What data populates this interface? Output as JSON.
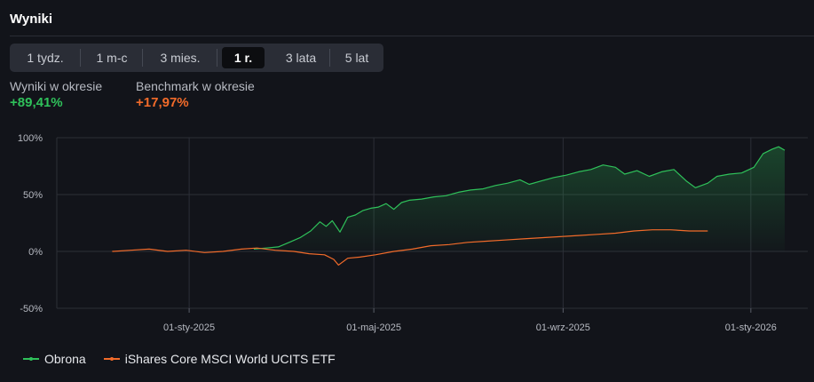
{
  "header": {
    "title": "Wyniki"
  },
  "tabs": [
    {
      "label": "1 tydz."
    },
    {
      "label": "1 m-c"
    },
    {
      "label": "3 mies."
    },
    {
      "label": "1 r.",
      "active": true
    },
    {
      "label": "3 lata"
    },
    {
      "label": "5 lat"
    }
  ],
  "stats": {
    "portfolio_label": "Wyniki w okresie",
    "portfolio_value": "+89,41%",
    "benchmark_label": "Benchmark w okresie",
    "benchmark_value": "+17,97%"
  },
  "colors": {
    "portfolio": "#2fc15a",
    "benchmark": "#f26b2a",
    "grid": "#2c2f37"
  },
  "chart_data": {
    "type": "line",
    "xlabel": "",
    "ylabel": "",
    "ylim": [
      -50,
      100
    ],
    "yticks": [
      "100%",
      "50%",
      "0%",
      "-50%"
    ],
    "ytick_values": [
      100,
      50,
      0,
      -50
    ],
    "xticks": [
      "01-sty-2025",
      "01-maj-2025",
      "01-wrz-2025",
      "01-sty-2026"
    ],
    "xtick_dates": [
      "2025-01-01",
      "2025-05-01",
      "2025-09-01",
      "2026-01-01"
    ],
    "grid": true,
    "legend_position": "bottom-left",
    "series": [
      {
        "name": "Obrona",
        "color": "#2fc15a",
        "points": [
          [
            "2025-02-12",
            2
          ],
          [
            "2025-02-20",
            3
          ],
          [
            "2025-02-28",
            4
          ],
          [
            "2025-03-07",
            8
          ],
          [
            "2025-03-14",
            12
          ],
          [
            "2025-03-21",
            18
          ],
          [
            "2025-03-27",
            26
          ],
          [
            "2025-03-31",
            22
          ],
          [
            "2025-04-04",
            27
          ],
          [
            "2025-04-09",
            17
          ],
          [
            "2025-04-14",
            30
          ],
          [
            "2025-04-19",
            32
          ],
          [
            "2025-04-24",
            36
          ],
          [
            "2025-04-29",
            38
          ],
          [
            "2025-05-04",
            39
          ],
          [
            "2025-05-09",
            42
          ],
          [
            "2025-05-14",
            37
          ],
          [
            "2025-05-19",
            43
          ],
          [
            "2025-05-24",
            45
          ],
          [
            "2025-06-01",
            46
          ],
          [
            "2025-06-09",
            48
          ],
          [
            "2025-06-17",
            49
          ],
          [
            "2025-06-25",
            52
          ],
          [
            "2025-07-03",
            54
          ],
          [
            "2025-07-11",
            55
          ],
          [
            "2025-07-19",
            58
          ],
          [
            "2025-07-27",
            60
          ],
          [
            "2025-08-04",
            63
          ],
          [
            "2025-08-10",
            59
          ],
          [
            "2025-08-18",
            62
          ],
          [
            "2025-08-26",
            65
          ],
          [
            "2025-09-03",
            67
          ],
          [
            "2025-09-11",
            70
          ],
          [
            "2025-09-19",
            72
          ],
          [
            "2025-09-27",
            76
          ],
          [
            "2025-10-05",
            74
          ],
          [
            "2025-10-11",
            68
          ],
          [
            "2025-10-19",
            71
          ],
          [
            "2025-10-27",
            66
          ],
          [
            "2025-11-04",
            70
          ],
          [
            "2025-11-12",
            72
          ],
          [
            "2025-11-20",
            62
          ],
          [
            "2025-11-26",
            56
          ],
          [
            "2025-12-04",
            60
          ],
          [
            "2025-12-10",
            66
          ],
          [
            "2025-12-18",
            68
          ],
          [
            "2025-12-26",
            69
          ],
          [
            "2026-01-03",
            74
          ],
          [
            "2026-01-09",
            86
          ],
          [
            "2026-01-15",
            90
          ],
          [
            "2026-01-19",
            92
          ],
          [
            "2026-01-23",
            89
          ]
        ]
      },
      {
        "name": "iShares Core MSCI World UCITS ETF",
        "color": "#f26b2a",
        "points": [
          [
            "2024-11-12",
            0
          ],
          [
            "2024-11-24",
            1
          ],
          [
            "2024-12-06",
            2
          ],
          [
            "2024-12-18",
            0
          ],
          [
            "2024-12-30",
            1
          ],
          [
            "2025-01-11",
            -1
          ],
          [
            "2025-01-23",
            0
          ],
          [
            "2025-02-04",
            2
          ],
          [
            "2025-02-14",
            3
          ],
          [
            "2025-02-26",
            1
          ],
          [
            "2025-03-10",
            0
          ],
          [
            "2025-03-20",
            -2
          ],
          [
            "2025-03-30",
            -3
          ],
          [
            "2025-04-05",
            -7
          ],
          [
            "2025-04-08",
            -12
          ],
          [
            "2025-04-14",
            -6
          ],
          [
            "2025-04-22",
            -5
          ],
          [
            "2025-05-02",
            -3
          ],
          [
            "2025-05-14",
            0
          ],
          [
            "2025-05-26",
            2
          ],
          [
            "2025-06-07",
            5
          ],
          [
            "2025-06-19",
            6
          ],
          [
            "2025-07-01",
            8
          ],
          [
            "2025-07-13",
            9
          ],
          [
            "2025-07-25",
            10
          ],
          [
            "2025-08-06",
            11
          ],
          [
            "2025-08-18",
            12
          ],
          [
            "2025-08-30",
            13
          ],
          [
            "2025-09-11",
            14
          ],
          [
            "2025-09-23",
            15
          ],
          [
            "2025-10-05",
            16
          ],
          [
            "2025-10-17",
            18
          ],
          [
            "2025-10-29",
            19
          ],
          [
            "2025-11-10",
            19
          ],
          [
            "2025-11-22",
            18
          ],
          [
            "2025-12-04",
            18
          ]
        ]
      }
    ]
  }
}
